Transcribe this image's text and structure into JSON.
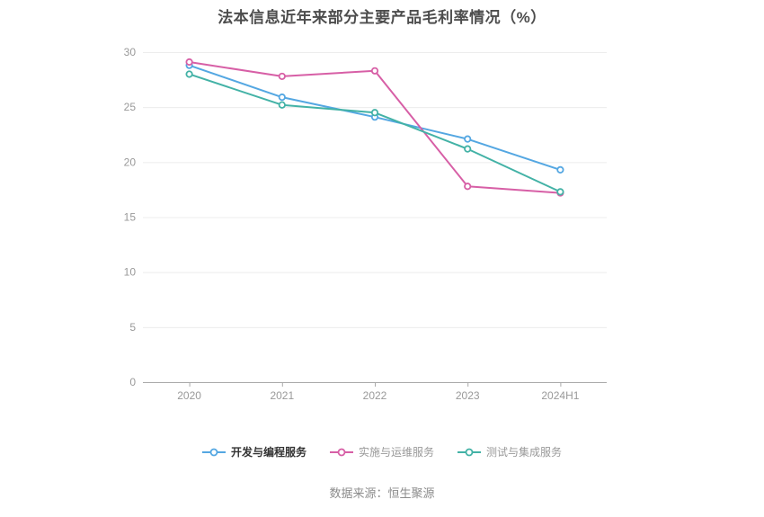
{
  "title": "法本信息近年来部分主要产品毛利率情况（%）",
  "source": "数据来源：恒生聚源",
  "chart_data": {
    "type": "line",
    "title": "法本信息近年来部分主要产品毛利率情况（%）",
    "categories": [
      "2020",
      "2021",
      "2022",
      "2023",
      "2024H1"
    ],
    "series": [
      {
        "name": "开发与编程服务",
        "color": "#54a7e2",
        "values": [
          28.8,
          25.9,
          24.1,
          22.1,
          19.3
        ],
        "legend_text_color": "#333333",
        "legend_text_weight": "700"
      },
      {
        "name": "实施与运维服务",
        "color": "#d75fa6",
        "values": [
          29.1,
          27.8,
          28.3,
          17.8,
          17.2
        ],
        "legend_text_color": "#999999",
        "legend_text_weight": "400"
      },
      {
        "name": "测试与集成服务",
        "color": "#43b2a6",
        "values": [
          28.0,
          25.2,
          24.5,
          21.2,
          17.3
        ],
        "legend_text_color": "#999999",
        "legend_text_weight": "400"
      }
    ],
    "xlabel": "",
    "ylabel": "",
    "ylim": [
      0,
      30
    ],
    "yticks": [
      0,
      5,
      10,
      15,
      20,
      25,
      30
    ],
    "grid": true,
    "legend_position": "bottom",
    "marker": "hollow-circle",
    "axis_color": "#aaaaaa",
    "grid_color": "#ececec",
    "tick_label_color": "#999999"
  }
}
